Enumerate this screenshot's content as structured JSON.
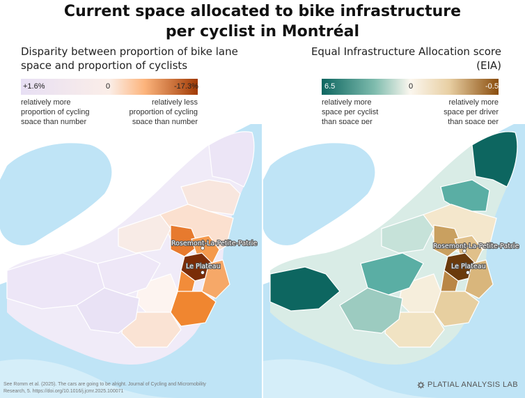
{
  "title": {
    "line1": "Current space allocated to bike infrastructure",
    "line2": "per cyclist in Montréal"
  },
  "left_panel": {
    "subtitle": "Disparity between proportion of bike lane space and proportion of cyclists",
    "legend": {
      "min_label": "+1.6%",
      "mid_label": "0",
      "max_label": "-17.3%",
      "note_left": "relatively more proportion of cycling space than number of cyclists",
      "note_right": "relatively less proportion of cycling space than number of cyclists",
      "colors": [
        "#e7dff4",
        "#fbeee8",
        "#fcb47c",
        "#a13a05"
      ]
    },
    "labels": {
      "rosemont": "Rosemont-La-Petite-Patrie",
      "plateau": "Le Plateau"
    }
  },
  "right_panel": {
    "subtitle": "Equal Infrastructure Allocation score (EIA)",
    "legend": {
      "min_label": "6.5",
      "mid_label": "0",
      "max_label": "-0.5",
      "note_left": "relatively more space per cyclist than space per driver",
      "note_right": "relatively more space per driver than space per cyclist",
      "colors": [
        "#0d6660",
        "#7fbcae",
        "#fbf7ef",
        "#e8cfa3",
        "#8a4d0d"
      ]
    },
    "labels": {
      "rosemont": "Rosemont-La-Petite-Patrie",
      "plateau": "Le Plateau"
    }
  },
  "footnote": "See Romm et al. (2025). The cars are going to be alright. Journal of Cycling and Micromobility Research, 5. https://doi.org/10.1016/j.jcmr.2025.100071",
  "logo": "PLATIAL ANALYSIS LAB",
  "colors": {
    "water": "#bfe4f6",
    "land": "#ffffff",
    "border": "#ffffff"
  }
}
